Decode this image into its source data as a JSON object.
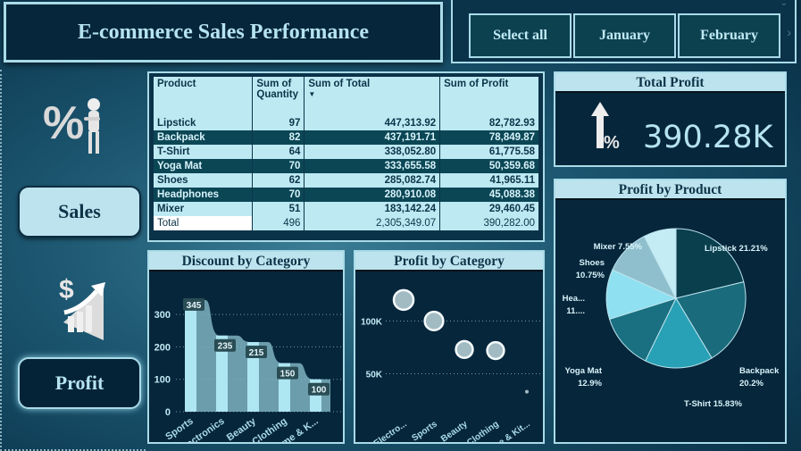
{
  "header": {
    "title": "E-commerce Sales Performance"
  },
  "slicer": {
    "options": [
      "Select all",
      "January",
      "February"
    ],
    "chevron_down_icon": "chevron-down",
    "chevron_right_icon": "chevron-right"
  },
  "nav": {
    "sales_label": "Sales",
    "profit_label": "Profit",
    "sales_icon": "percent-person-icon",
    "profit_icon": "dollar-growth-icon"
  },
  "table": {
    "columns": [
      "Product",
      "Sum of Quantity",
      "Sum of Total",
      "Sum of Profit"
    ],
    "col_quantity_line1": "Sum of",
    "col_quantity_line2": "Quantity",
    "sort_indicator": "▼",
    "rows": [
      {
        "product": "Lipstick",
        "quantity": "97",
        "total": "447,313.92",
        "profit": "82,782.93"
      },
      {
        "product": "Backpack",
        "quantity": "82",
        "total": "437,191.71",
        "profit": "78,849.87"
      },
      {
        "product": "T-Shirt",
        "quantity": "64",
        "total": "338,052.80",
        "profit": "61,775.58"
      },
      {
        "product": "Yoga Mat",
        "quantity": "70",
        "total": "333,655.58",
        "profit": "50,359.68"
      },
      {
        "product": "Shoes",
        "quantity": "62",
        "total": "285,082.74",
        "profit": "41,965.11"
      },
      {
        "product": "Headphones",
        "quantity": "70",
        "total": "280,910.08",
        "profit": "45,088.38"
      },
      {
        "product": "Mixer",
        "quantity": "51",
        "total": "183,142.24",
        "profit": "29,460.45"
      }
    ],
    "total_row": {
      "product": "Total",
      "quantity": "496",
      "total": "2,305,349.07",
      "profit": "390,282.00"
    }
  },
  "kpi": {
    "title": "Total Profit",
    "value": "390.28K",
    "icon": "arrow-up-percent-icon"
  },
  "colors": {
    "background": "#1d5771",
    "panel": "#06263b",
    "header_light": "#bde4ee",
    "text_light": "#b5e3ef",
    "pie": [
      "#0a3f4d",
      "#1a6b7c",
      "#28a0b5",
      "#1a7080",
      "#8fe0f0",
      "#8fbfcc",
      "#c3ecf5"
    ]
  },
  "chart_data": [
    {
      "type": "bar",
      "title": "Discount by Category",
      "categories": [
        "Sports",
        "Electronics",
        "Beauty",
        "Clothing",
        "Home & K..."
      ],
      "values": [
        345,
        235,
        215,
        150,
        100
      ],
      "data_labels": [
        "345",
        "235",
        "215",
        "150",
        "100"
      ],
      "yticks": [
        "0",
        "100",
        "200",
        "300"
      ],
      "ylim": [
        0,
        350
      ],
      "grid": true
    },
    {
      "type": "scatter",
      "title": "Profit by Category",
      "categories": [
        "Electro...",
        "Sports",
        "Beauty",
        "Clothing",
        "Home & Kit..."
      ],
      "values": [
        120000,
        100000,
        73000,
        72000,
        33000
      ],
      "yticks": [
        "50K",
        "100K"
      ],
      "ytick_values": [
        50000,
        100000
      ],
      "ylim": [
        20000,
        130000
      ],
      "grid": true
    },
    {
      "type": "pie",
      "title": "Profit by Product",
      "slices": [
        {
          "label": "Lipstick",
          "value": 21.21,
          "text": "Lipstick 21.21%"
        },
        {
          "label": "Backpack",
          "value": 20.2,
          "text_line1": "Backpack",
          "text_line2": "20.2%"
        },
        {
          "label": "T-Shirt",
          "value": 15.83,
          "text": "T-Shirt 15.83%"
        },
        {
          "label": "Yoga Mat",
          "value": 12.9,
          "text_line1": "Yoga Mat",
          "text_line2": "12.9%"
        },
        {
          "label": "Headphones",
          "value": 11.55,
          "text_line1": "Hea...",
          "text_line2": "11...."
        },
        {
          "label": "Shoes",
          "value": 10.75,
          "text_line1": "Shoes",
          "text_line2": "10.75%"
        },
        {
          "label": "Mixer",
          "value": 7.55,
          "text": "Mixer 7.55%"
        }
      ]
    }
  ]
}
